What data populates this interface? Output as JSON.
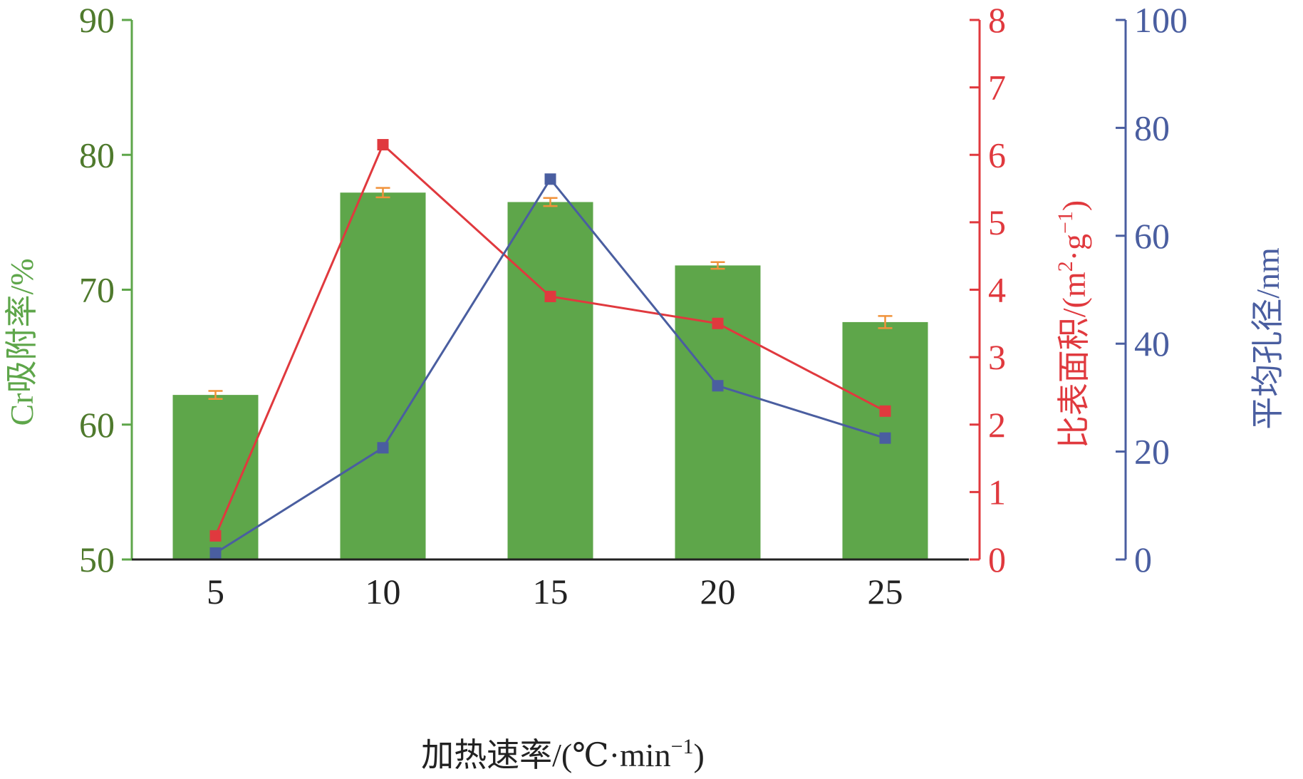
{
  "chart_data": {
    "type": "bar",
    "categories": [
      "5",
      "10",
      "15",
      "20",
      "25"
    ],
    "xlabel": "加热速率/(℃·min",
    "xlabel_sup": "−1",
    "xlabel_close": ")",
    "left_axis": {
      "label": "Cr吸附率/%",
      "ticks": [
        "50",
        "60",
        "70",
        "80",
        "90"
      ],
      "ylim": [
        50,
        90
      ],
      "color": "#4f7a2d"
    },
    "right_axis": {
      "label_main": "比表面积/(m",
      "label_sup1": "2",
      "label_mid": "·g",
      "label_sup2": "−1",
      "label_close": ")",
      "ticks": [
        "0",
        "1",
        "2",
        "3",
        "4",
        "5",
        "6",
        "7",
        "8"
      ],
      "ylim": [
        0,
        8
      ],
      "color": "#e0393e"
    },
    "far_right_axis": {
      "label": "平均孔径/nm",
      "ticks": [
        "0",
        "20",
        "40",
        "60",
        "80",
        "100"
      ],
      "ylim": [
        0,
        100
      ],
      "color": "#4a5ea0"
    },
    "series": [
      {
        "axis": "left",
        "kind": "bar",
        "values": [
          62.2,
          77.2,
          76.5,
          71.8,
          67.6
        ],
        "errors": [
          0.3,
          0.35,
          0.3,
          0.25,
          0.45
        ],
        "color": "#5ea64a",
        "error_color": "#f0923a"
      },
      {
        "axis": "right",
        "kind": "line",
        "values": [
          0.35,
          6.15,
          3.9,
          3.5,
          2.2
        ],
        "color": "#e0393e"
      },
      {
        "axis": "far_right",
        "kind": "line",
        "values": [
          1.2,
          20.7,
          70.5,
          32.2,
          22.5
        ],
        "color": "#4a5ea0"
      }
    ]
  }
}
